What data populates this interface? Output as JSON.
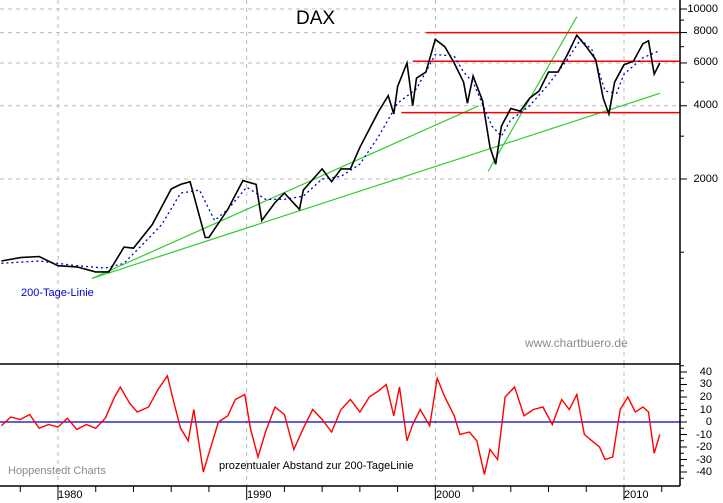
{
  "chart_data": [
    {
      "type": "line",
      "title": "DAX",
      "xlabel": "",
      "ylabel": "",
      "y_scale": "log",
      "ylim": [
        600,
        10500
      ],
      "xlim": [
        1977,
        2012
      ],
      "grid": true,
      "y_ticks": [
        10000,
        8000,
        6000,
        4000,
        2000
      ],
      "x_ticks": [
        1980,
        1990,
        2000,
        2010
      ],
      "series": [
        {
          "name": "DAX",
          "color": "#000000",
          "x": [
            1977.0,
            1978.0,
            1979.0,
            1980.0,
            1981.0,
            1982.0,
            1982.7,
            1983.5,
            1984.0,
            1985.0,
            1986.0,
            1986.5,
            1987.0,
            1987.8,
            1988.0,
            1989.0,
            1989.8,
            1990.0,
            1990.5,
            1990.8,
            1991.5,
            1992.0,
            1992.8,
            1993.0,
            1994.0,
            1994.5,
            1995.0,
            1995.5,
            1996.0,
            1997.0,
            1997.5,
            1997.8,
            1998.0,
            1998.5,
            1998.8,
            1999.0,
            1999.5,
            2000.0,
            2000.5,
            2001.0,
            2001.5,
            2001.7,
            2002.0,
            2002.5,
            2002.9,
            2003.2,
            2003.5,
            2004.0,
            2004.5,
            2005.0,
            2005.5,
            2006.0,
            2006.5,
            2007.0,
            2007.5,
            2008.0,
            2008.5,
            2008.9,
            2009.2,
            2009.5,
            2010.0,
            2010.5,
            2011.0,
            2011.3,
            2011.6,
            2011.9
          ],
          "values": [
            920,
            950,
            960,
            880,
            870,
            830,
            830,
            1050,
            1040,
            1300,
            1820,
            1900,
            1950,
            1150,
            1150,
            1500,
            1970,
            1950,
            1900,
            1350,
            1600,
            1750,
            1500,
            1800,
            2200,
            1950,
            2200,
            2200,
            2700,
            3800,
            4400,
            3700,
            4800,
            6000,
            4000,
            5200,
            5500,
            7500,
            7000,
            6000,
            5000,
            4100,
            5300,
            4200,
            2700,
            2300,
            3300,
            3900,
            3800,
            4300,
            4600,
            5500,
            5500,
            6500,
            7800,
            7000,
            6200,
            4300,
            3700,
            5000,
            5900,
            6100,
            7200,
            7400,
            5400,
            6000
          ]
        },
        {
          "name": "200-Tage-Linie",
          "color": "#0000cc",
          "style": "dotted",
          "x": [
            1977.0,
            1979.0,
            1981.0,
            1982.5,
            1983.5,
            1984.5,
            1985.5,
            1986.5,
            1987.5,
            1988.3,
            1989.0,
            1990.0,
            1991.0,
            1992.0,
            1993.0,
            1994.0,
            1995.0,
            1996.0,
            1997.0,
            1998.0,
            1999.0,
            2000.0,
            2001.0,
            2001.5,
            2002.0,
            2003.0,
            2003.5,
            2004.0,
            2005.0,
            2006.0,
            2007.0,
            2007.7,
            2008.3,
            2009.0,
            2009.6,
            2010.0,
            2011.0,
            2011.8
          ],
          "values": [
            900,
            920,
            880,
            860,
            900,
            1080,
            1300,
            1750,
            1800,
            1350,
            1500,
            1850,
            1650,
            1650,
            1700,
            2000,
            2050,
            2300,
            3000,
            4100,
            4700,
            6500,
            6400,
            5500,
            5000,
            3300,
            3000,
            3500,
            4000,
            4900,
            6200,
            7500,
            6800,
            4600,
            4500,
            5400,
            6300,
            6700
          ]
        }
      ],
      "horizontal_lines": [
        {
          "value": 8000,
          "color": "#ff0000",
          "x_from": 1999.5,
          "x_to": 2012
        },
        {
          "value": 6100,
          "color": "#ff0000",
          "x_from": 1998.8,
          "x_to": 2012
        },
        {
          "value": 3750,
          "color": "#ff0000",
          "x_from": 1998.2,
          "x_to": 2012
        }
      ],
      "trend_lines": [
        {
          "color": "#33cc33",
          "from": [
            1981.8,
            780
          ],
          "to": [
            2002.3,
            4000
          ]
        },
        {
          "color": "#33cc33",
          "from": [
            1981.8,
            780
          ],
          "to": [
            2011.9,
            4500
          ]
        },
        {
          "color": "#33cc33",
          "from": [
            2002.8,
            2150
          ],
          "to": [
            2007.5,
            9300
          ]
        }
      ],
      "annotations": [
        "200-Tage-Linie",
        "www.chartbuero.de"
      ]
    },
    {
      "type": "line",
      "title": "prozentualer Abstand zur 200-TageLinie",
      "xlabel": "",
      "ylabel": "",
      "ylim": [
        -45,
        45
      ],
      "xlim": [
        1977,
        2012
      ],
      "y_ticks": [
        40,
        30,
        20,
        10,
        0,
        -10,
        -20,
        -30,
        -40
      ],
      "x_ticks": [
        1980,
        1990,
        2000,
        2010
      ],
      "grid": true,
      "series": [
        {
          "name": "Abstand %",
          "color": "#ff0000",
          "x": [
            1977.0,
            1977.5,
            1978.0,
            1978.5,
            1979.0,
            1979.5,
            1980.0,
            1980.5,
            1981.0,
            1981.5,
            1982.0,
            1982.5,
            1983.0,
            1983.3,
            1983.8,
            1984.2,
            1984.8,
            1985.3,
            1985.8,
            1986.1,
            1986.5,
            1986.9,
            1987.2,
            1987.7,
            1988.0,
            1988.5,
            1989.0,
            1989.4,
            1989.9,
            1990.2,
            1990.6,
            1991.0,
            1991.5,
            1992.0,
            1992.5,
            1993.0,
            1993.5,
            1994.0,
            1994.5,
            1995.0,
            1995.5,
            1996.0,
            1996.5,
            1997.0,
            1997.4,
            1997.8,
            1998.1,
            1998.5,
            1998.8,
            1999.2,
            1999.7,
            2000.1,
            2000.5,
            2001.0,
            2001.3,
            2001.8,
            2002.2,
            2002.6,
            2002.9,
            2003.3,
            2003.7,
            2004.2,
            2004.7,
            2005.2,
            2005.7,
            2006.2,
            2006.7,
            2007.1,
            2007.5,
            2007.9,
            2008.3,
            2008.7,
            2009.0,
            2009.4,
            2009.8,
            2010.2,
            2010.6,
            2011.0,
            2011.3,
            2011.6,
            2011.9
          ],
          "values": [
            -3,
            4,
            2,
            6,
            -5,
            -2,
            -4,
            3,
            -6,
            -2,
            -5,
            3,
            20,
            28,
            15,
            8,
            12,
            26,
            37,
            18,
            -5,
            -15,
            10,
            -40,
            -25,
            0,
            5,
            18,
            22,
            -5,
            -28,
            -8,
            12,
            6,
            -22,
            -5,
            10,
            2,
            -8,
            10,
            18,
            8,
            20,
            25,
            30,
            5,
            28,
            -15,
            -2,
            10,
            -3,
            35,
            20,
            5,
            -10,
            -8,
            -15,
            -42,
            -22,
            -30,
            20,
            28,
            5,
            10,
            12,
            -2,
            18,
            10,
            22,
            -10,
            -15,
            -20,
            -30,
            -28,
            10,
            20,
            8,
            12,
            8,
            -25,
            -10
          ]
        }
      ],
      "reference_line": {
        "value": 0,
        "color": "#0000cc"
      },
      "annotations": [
        "Hoppenstedt Charts",
        "prozentualer Abstand zur 200-TageLinie"
      ]
    }
  ],
  "labels": {
    "title": "DAX",
    "ma_label": "200-Tage-Linie",
    "watermark": "www.chartbuero.de",
    "source": "Hoppenstedt Charts",
    "oscillator_label": "prozentualer Abstand zur 200-TageLinie",
    "y_main": [
      "10000",
      "8000",
      "6000",
      "4000",
      "2000"
    ],
    "y_osc": [
      "40",
      "30",
      "20",
      "10",
      "0",
      "-10",
      "-20",
      "-30",
      "-40"
    ],
    "x": [
      "1980",
      "1990",
      "2000",
      "2010"
    ]
  },
  "colors": {
    "price": "#000000",
    "ma": "#0000cc",
    "resistance": "#ff0000",
    "trend": "#33cc33",
    "oscillator": "#ff0000",
    "zero_line": "#0000cc",
    "grid": "#bbbbbb"
  }
}
